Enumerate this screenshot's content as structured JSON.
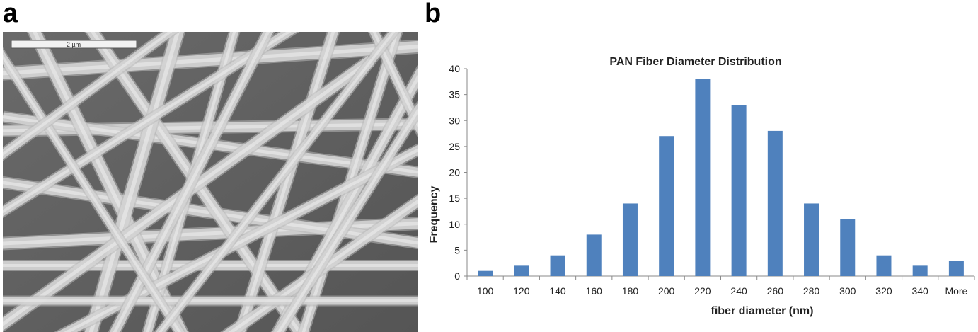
{
  "panels": {
    "a": "a",
    "b": "b"
  },
  "micrograph": {
    "scale_bar_label": "2 µm"
  },
  "colors": {
    "bar": "#4f81bd",
    "axis": "#8a8a8a",
    "sem_bg": "#5f5f5f",
    "fiber": "#d4d4d4"
  },
  "chart_data": {
    "type": "bar",
    "title": "PAN Fiber Diameter Distribution",
    "xlabel": "fiber diameter (nm)",
    "ylabel": "Frequency",
    "categories": [
      "100",
      "120",
      "140",
      "160",
      "180",
      "200",
      "220",
      "240",
      "260",
      "280",
      "300",
      "320",
      "340",
      "More"
    ],
    "values": [
      1,
      2,
      4,
      8,
      14,
      27,
      38,
      33,
      28,
      14,
      11,
      4,
      2,
      3
    ],
    "ylim": [
      0,
      40
    ],
    "yticks": [
      0,
      5,
      10,
      15,
      20,
      25,
      30,
      35,
      40
    ],
    "grid": false,
    "legend": "none"
  }
}
